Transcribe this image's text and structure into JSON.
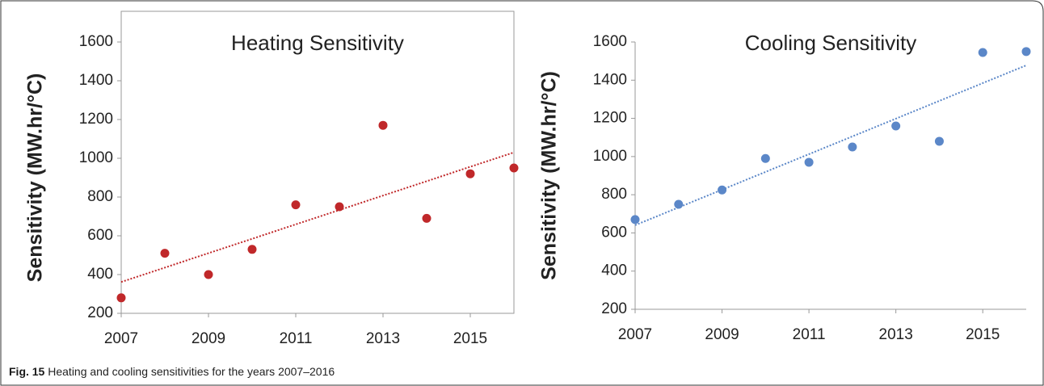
{
  "chart_data": [
    {
      "type": "scatter",
      "title": "Heating Sensitivity",
      "y_label": "Sensitivity (MW.hr/°C)",
      "x": [
        2007,
        2008,
        2009,
        2010,
        2011,
        2012,
        2013,
        2014,
        2015,
        2016
      ],
      "values": [
        280,
        510,
        400,
        530,
        760,
        750,
        1170,
        690,
        920,
        950
      ],
      "color": "#c0282a",
      "trendline": "linear",
      "frame": true,
      "xlim": [
        2007,
        2016
      ],
      "xticks": [
        2007,
        2009,
        2011,
        2013,
        2015
      ],
      "ylim": [
        200,
        1600
      ],
      "yticks": [
        200,
        400,
        600,
        800,
        1000,
        1200,
        1400,
        1600
      ]
    },
    {
      "type": "scatter",
      "title": "Cooling Sensitivity",
      "y_label": "Sensitivity (MW.hr/°C)",
      "x": [
        2007,
        2008,
        2009,
        2010,
        2011,
        2012,
        2013,
        2014,
        2015,
        2016
      ],
      "values": [
        670,
        750,
        825,
        990,
        970,
        1050,
        1160,
        1080,
        1545,
        1550
      ],
      "color": "#5b87c8",
      "trendline": "linear",
      "frame": false,
      "xlim": [
        2007,
        2016
      ],
      "xticks": [
        2007,
        2009,
        2011,
        2013,
        2015
      ],
      "ylim": [
        200,
        1600
      ],
      "yticks": [
        200,
        400,
        600,
        800,
        1000,
        1200,
        1400,
        1600
      ]
    }
  ],
  "caption": {
    "label": "Fig. 15",
    "text": "Heating and cooling sensitivities for the years 2007–2016"
  }
}
